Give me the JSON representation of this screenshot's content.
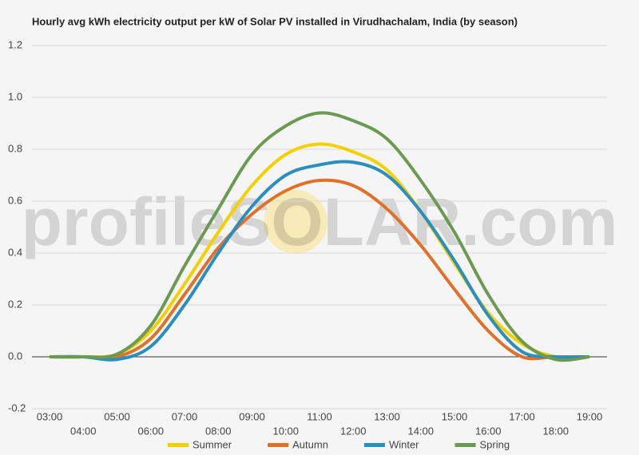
{
  "chart_data": {
    "type": "line",
    "title": "Hourly avg kWh electricity output per kW of Solar PV installed in Virudhachalam, India (by season)",
    "watermark": "profileSOLAR.com",
    "categories": [
      "03:00",
      "04:00",
      "05:00",
      "06:00",
      "07:00",
      "08:00",
      "09:00",
      "10:00",
      "11:00",
      "12:00",
      "13:00",
      "14:00",
      "15:00",
      "16:00",
      "17:00",
      "18:00",
      "19:00"
    ],
    "series": [
      {
        "name": "Summer",
        "color": "#f5d000",
        "values": [
          0,
          0,
          0.01,
          0.1,
          0.28,
          0.48,
          0.66,
          0.78,
          0.82,
          0.79,
          0.72,
          0.56,
          0.36,
          0.17,
          0.05,
          0,
          0
        ]
      },
      {
        "name": "Autumn",
        "color": "#e0712a",
        "values": [
          0,
          0,
          0,
          0.07,
          0.24,
          0.42,
          0.55,
          0.64,
          0.68,
          0.66,
          0.57,
          0.43,
          0.26,
          0.1,
          0,
          0,
          0
        ]
      },
      {
        "name": "Winter",
        "color": "#2a8fbf",
        "values": [
          0,
          0,
          -0.01,
          0.04,
          0.2,
          0.4,
          0.58,
          0.7,
          0.74,
          0.75,
          0.7,
          0.56,
          0.37,
          0.16,
          0.02,
          0,
          0
        ]
      },
      {
        "name": "Spring",
        "color": "#6b9b52",
        "values": [
          0,
          0,
          0.01,
          0.12,
          0.35,
          0.57,
          0.78,
          0.89,
          0.94,
          0.91,
          0.84,
          0.68,
          0.48,
          0.24,
          0.06,
          -0.01,
          0
        ]
      }
    ],
    "ylim": [
      -0.2,
      1.2
    ],
    "yticks": [
      -0.2,
      {
        "value": 0,
        "label": "0.0"
      },
      0.2,
      0.4,
      0.6,
      0.8,
      {
        "value": 1,
        "label": "1.0"
      },
      1.2
    ],
    "grid": true,
    "legend": "bottom"
  }
}
